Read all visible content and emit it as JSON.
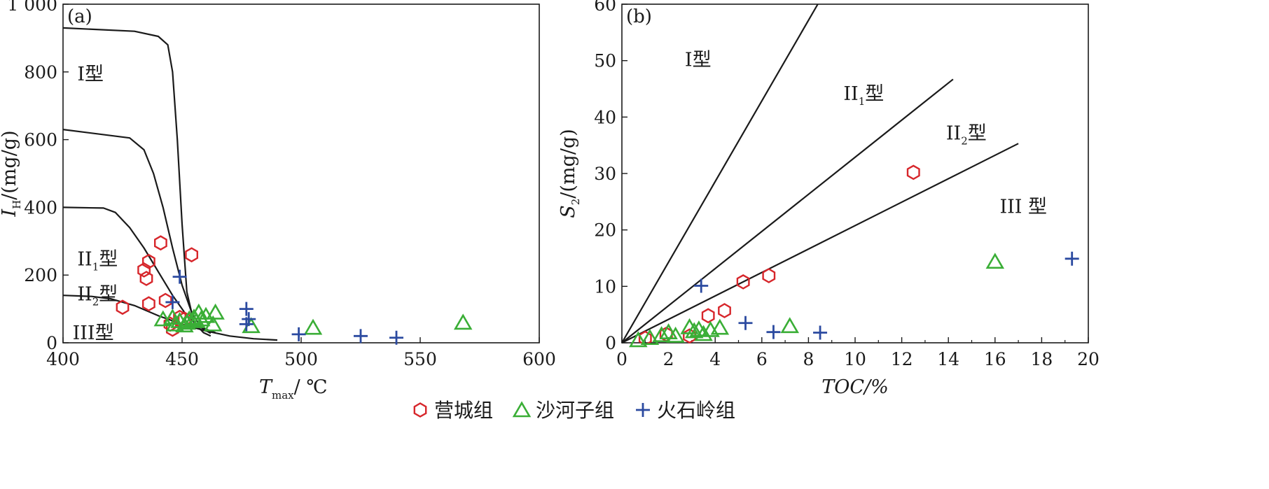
{
  "legend": [
    {
      "name": "营城组",
      "marker": "hexagon",
      "color": "#d7262b"
    },
    {
      "name": "沙河子组",
      "marker": "triangle",
      "color": "#3aae36"
    },
    {
      "name": "火石岭组",
      "marker": "plus",
      "color": "#2b4aa0"
    }
  ],
  "chart_data": [
    {
      "type": "scatter",
      "panel_label": "(a)",
      "xlabel": "T",
      "xlabel_sub": "max",
      "xlabel_unit": "/ ℃",
      "ylabel": "I",
      "ylabel_sub": "H",
      "ylabel_unit": "/(mg/g)",
      "xlim": [
        400,
        600
      ],
      "ylim": [
        0,
        1000
      ],
      "xticks": [
        400,
        450,
        500,
        550,
        600
      ],
      "xtick_labels": [
        "400",
        "450",
        "500",
        "550",
        "600"
      ],
      "yticks": [
        0,
        200,
        400,
        600,
        800,
        1000
      ],
      "ytick_labels": [
        "0",
        "200",
        "400",
        "600",
        "800",
        "1 000"
      ],
      "zones": [
        {
          "label": "I型",
          "x": 406,
          "y": 775
        },
        {
          "label": "II",
          "sub": "1",
          "suffix": "型",
          "x": 406,
          "y": 228
        },
        {
          "label": "II",
          "sub": "2",
          "suffix": "型",
          "x": 406,
          "y": 125
        },
        {
          "label": "III型",
          "x": 404,
          "y": 10
        }
      ],
      "boundaries": [
        {
          "name": "I",
          "points": [
            [
              400,
              930
            ],
            [
              430,
              920
            ],
            [
              440,
              905
            ],
            [
              444,
              880
            ],
            [
              446,
              800
            ],
            [
              448,
              600
            ],
            [
              450,
              350
            ],
            [
              452,
              150
            ],
            [
              455,
              60
            ],
            [
              459,
              30
            ],
            [
              462,
              20
            ]
          ]
        },
        {
          "name": "II1",
          "points": [
            [
              400,
              630
            ],
            [
              428,
              605
            ],
            [
              434,
              570
            ],
            [
              438,
              500
            ],
            [
              442,
              400
            ],
            [
              446,
              280
            ],
            [
              450,
              170
            ],
            [
              454,
              90
            ],
            [
              458,
              45
            ],
            [
              462,
              28
            ]
          ]
        },
        {
          "name": "II2",
          "points": [
            [
              400,
              400
            ],
            [
              417,
              398
            ],
            [
              422,
              385
            ],
            [
              428,
              340
            ],
            [
              434,
              280
            ],
            [
              440,
              210
            ],
            [
              446,
              140
            ],
            [
              452,
              80
            ],
            [
              458,
              45
            ],
            [
              464,
              30
            ]
          ]
        },
        {
          "name": "III",
          "points": [
            [
              400,
              140
            ],
            [
              412,
              137
            ],
            [
              420,
              130
            ],
            [
              430,
              110
            ],
            [
              440,
              80
            ],
            [
              450,
              55
            ],
            [
              460,
              35
            ],
            [
              470,
              20
            ],
            [
              480,
              12
            ],
            [
              490,
              8
            ]
          ]
        }
      ],
      "series": [
        {
          "name": "营城组",
          "marker": "hexagon",
          "points": [
            [
              425,
              105
            ],
            [
              434,
              215
            ],
            [
              435,
              190
            ],
            [
              436,
              240
            ],
            [
              436,
              115
            ],
            [
              441,
              295
            ],
            [
              443,
              125
            ],
            [
              445,
              55
            ],
            [
              446,
              40
            ],
            [
              449,
              75
            ],
            [
              451,
              70
            ],
            [
              454,
              260
            ]
          ]
        },
        {
          "name": "沙河子组",
          "marker": "triangle",
          "points": [
            [
              442,
              70
            ],
            [
              446,
              75
            ],
            [
              447,
              55
            ],
            [
              449,
              65
            ],
            [
              451,
              52
            ],
            [
              452,
              60
            ],
            [
              453,
              70
            ],
            [
              455,
              75
            ],
            [
              456,
              65
            ],
            [
              457,
              90
            ],
            [
              458,
              70
            ],
            [
              460,
              80
            ],
            [
              463,
              55
            ],
            [
              464,
              90
            ],
            [
              479,
              50
            ],
            [
              505,
              45
            ],
            [
              568,
              60
            ]
          ]
        },
        {
          "name": "火石岭组",
          "marker": "plus",
          "points": [
            [
              446,
              120
            ],
            [
              449,
              195
            ],
            [
              477,
              100
            ],
            [
              477,
              55
            ],
            [
              478,
              70
            ],
            [
              499,
              25
            ],
            [
              525,
              20
            ],
            [
              540,
              15
            ]
          ]
        }
      ]
    },
    {
      "type": "scatter",
      "panel_label": "(b)",
      "xlabel": "TOC/%",
      "ylabel": "S",
      "ylabel_sub": "2",
      "ylabel_unit": "/(mg/g)",
      "xlim": [
        0,
        20
      ],
      "ylim": [
        0,
        60
      ],
      "xticks": [
        0,
        2,
        4,
        6,
        8,
        10,
        12,
        14,
        16,
        18,
        20
      ],
      "xtick_labels": [
        "0",
        "2",
        "4",
        "6",
        "8",
        "10",
        "12",
        "14",
        "16",
        "18",
        "20"
      ],
      "yticks": [
        0,
        10,
        20,
        30,
        40,
        50,
        60
      ],
      "ytick_labels": [
        "0",
        "10",
        "20",
        "30",
        "40",
        "50",
        "60"
      ],
      "zones": [
        {
          "label": "I型",
          "x": 2.7,
          "y": 49
        },
        {
          "label": "II",
          "sub": "1",
          "suffix": "型",
          "x": 9.5,
          "y": 43
        },
        {
          "label": "II",
          "sub": "2",
          "suffix": "型",
          "x": 13.9,
          "y": 36
        },
        {
          "label": "III 型",
          "x": 16.2,
          "y": 23
        }
      ],
      "boundaries": [
        {
          "name": "I/II1",
          "points": [
            [
              0,
              0
            ],
            [
              8.4,
              60
            ]
          ]
        },
        {
          "name": "II1/II2",
          "points": [
            [
              0,
              0
            ],
            [
              14.2,
              46.7
            ]
          ]
        },
        {
          "name": "II2/III",
          "points": [
            [
              0,
              0
            ],
            [
              17,
              35.3
            ]
          ]
        }
      ],
      "series": [
        {
          "name": "营城组",
          "marker": "hexagon",
          "points": [
            [
              1.0,
              0.8
            ],
            [
              1.9,
              1.5
            ],
            [
              2.9,
              1.2
            ],
            [
              3.7,
              4.8
            ],
            [
              4.4,
              5.7
            ],
            [
              5.2,
              10.8
            ],
            [
              6.3,
              11.9
            ],
            [
              12.5,
              30.2
            ]
          ]
        },
        {
          "name": "沙河子组",
          "marker": "triangle",
          "points": [
            [
              0.7,
              0.5
            ],
            [
              1.2,
              0.9
            ],
            [
              1.7,
              1.4
            ],
            [
              2.0,
              1.9
            ],
            [
              2.3,
              1.3
            ],
            [
              2.9,
              2.8
            ],
            [
              3.1,
              2.1
            ],
            [
              3.3,
              2.4
            ],
            [
              3.5,
              1.6
            ],
            [
              3.8,
              2.3
            ],
            [
              4.2,
              2.7
            ],
            [
              7.2,
              3.0
            ],
            [
              16.0,
              14.4
            ]
          ]
        },
        {
          "name": "火石岭组",
          "marker": "plus",
          "points": [
            [
              3.4,
              10.1
            ],
            [
              5.3,
              3.5
            ],
            [
              6.5,
              1.9
            ],
            [
              8.5,
              1.8
            ],
            [
              19.3,
              14.9
            ]
          ]
        }
      ]
    }
  ]
}
